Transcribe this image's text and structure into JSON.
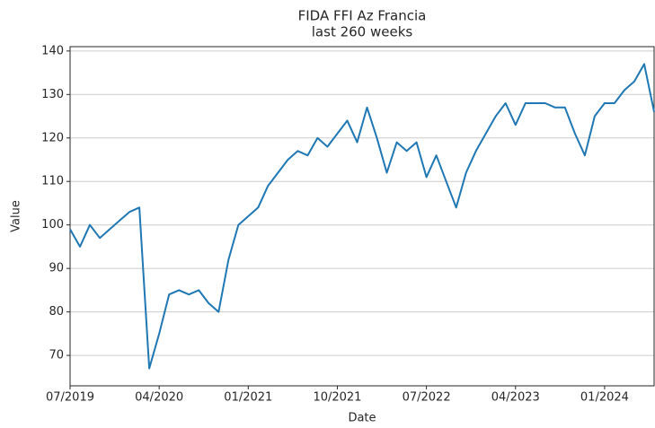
{
  "chart_data": {
    "type": "line",
    "title": "FIDA FFI Az Francia",
    "subtitle": "last 260 weeks",
    "x_label": "Date",
    "y_label": "Value",
    "x": [
      "07/2019",
      "08/2019",
      "09/2019",
      "10/2019",
      "11/2019",
      "12/2019",
      "01/2020",
      "02/2020",
      "03/2020",
      "04/2020",
      "05/2020",
      "06/2020",
      "07/2020",
      "08/2020",
      "09/2020",
      "10/2020",
      "11/2020",
      "12/2020",
      "01/2021",
      "02/2021",
      "03/2021",
      "04/2021",
      "05/2021",
      "06/2021",
      "07/2021",
      "08/2021",
      "09/2021",
      "10/2021",
      "11/2021",
      "12/2021",
      "01/2022",
      "02/2022",
      "03/2022",
      "04/2022",
      "05/2022",
      "06/2022",
      "07/2022",
      "08/2022",
      "09/2022",
      "10/2022",
      "11/2022",
      "12/2022",
      "01/2023",
      "02/2023",
      "03/2023",
      "04/2023",
      "05/2023",
      "06/2023",
      "07/2023",
      "08/2023",
      "09/2023",
      "10/2023",
      "11/2023",
      "12/2023",
      "01/2024",
      "02/2024",
      "03/2024",
      "04/2024",
      "05/2024",
      "06/2024"
    ],
    "series": [
      {
        "name": "FIDA FFI Az Francia",
        "color": "#1f77b4",
        "values": [
          99,
          95,
          100,
          97,
          99,
          101,
          103,
          104,
          67,
          75,
          84,
          85,
          84,
          85,
          82,
          80,
          92,
          100,
          102,
          104,
          109,
          112,
          115,
          117,
          116,
          120,
          118,
          121,
          124,
          119,
          127,
          120,
          112,
          119,
          117,
          119,
          111,
          116,
          110,
          104,
          112,
          117,
          121,
          125,
          128,
          123,
          128,
          128,
          128,
          127,
          127,
          121,
          116,
          125,
          128,
          128,
          131,
          133,
          137,
          126
        ]
      }
    ],
    "xlim": [
      "07/2019",
      "06/2024"
    ],
    "xticks": [
      "07/2019",
      "04/2020",
      "01/2021",
      "10/2021",
      "07/2022",
      "04/2023",
      "01/2024"
    ],
    "ylim": [
      63,
      141
    ],
    "yticks": [
      70,
      80,
      90,
      100,
      110,
      120,
      130,
      140
    ],
    "grid": true
  }
}
